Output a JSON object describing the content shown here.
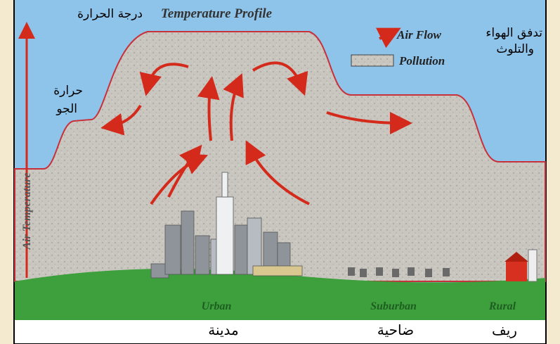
{
  "diagram": {
    "title": "Temperature Profile",
    "title_ar": "درجة الحرارة",
    "legend": {
      "air_flow": "Air Flow",
      "pollution": "Pollution",
      "ar_line1": "تدفق الهواء",
      "ar_line2": "والتلوث"
    },
    "axis_label": "Air Temperature",
    "axis_label_ar": [
      "حرارة",
      "الجو"
    ],
    "zones": [
      {
        "label": "Urban",
        "label_ar": "مدينة"
      },
      {
        "label": "Suburban",
        "label_ar": "ضاحية"
      },
      {
        "label": "Rural",
        "label_ar": "ريف"
      }
    ]
  }
}
